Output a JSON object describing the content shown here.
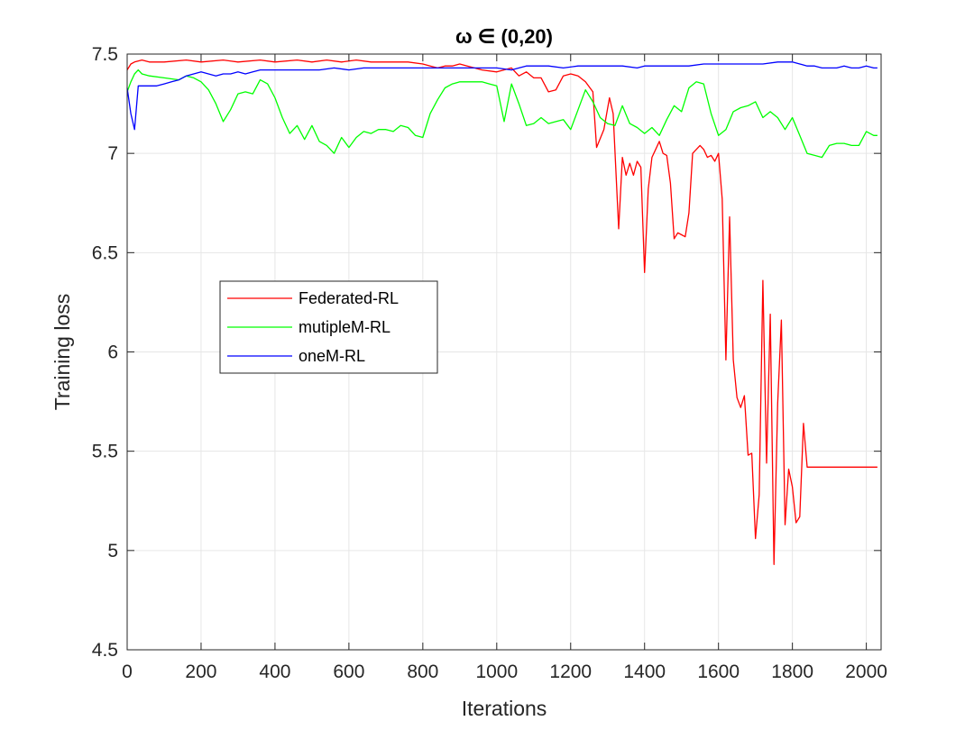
{
  "chart_data": {
    "type": "line",
    "title": "ω ∈ (0,20)",
    "xlabel": "Iterations",
    "ylabel": "Training loss",
    "xlim": [
      0,
      2040
    ],
    "ylim": [
      4.5,
      7.5
    ],
    "xticks": [
      0,
      200,
      400,
      600,
      800,
      1000,
      1200,
      1400,
      1600,
      1800,
      2000
    ],
    "yticks": [
      4.5,
      5,
      5.5,
      6,
      6.5,
      7,
      7.5
    ],
    "xtick_labels": [
      "0",
      "200",
      "400",
      "600",
      "800",
      "1000",
      "1200",
      "1400",
      "1600",
      "1800",
      "2000"
    ],
    "ytick_labels": [
      "4.5",
      "5",
      "5.5",
      "6",
      "6.5",
      "7",
      "7.5"
    ],
    "grid": true,
    "legend_position": "center-left",
    "series": [
      {
        "name": "Federated-RL",
        "color": "#ff0000",
        "x": [
          0,
          10,
          20,
          40,
          60,
          100,
          160,
          200,
          260,
          300,
          360,
          400,
          460,
          500,
          540,
          580,
          620,
          660,
          700,
          760,
          800,
          820,
          840,
          860,
          880,
          900,
          920,
          940,
          960,
          1000,
          1040,
          1060,
          1080,
          1100,
          1120,
          1140,
          1160,
          1180,
          1200,
          1220,
          1240,
          1260,
          1270,
          1290,
          1305,
          1315,
          1330,
          1340,
          1350,
          1360,
          1370,
          1380,
          1390,
          1400,
          1410,
          1420,
          1430,
          1440,
          1450,
          1460,
          1470,
          1480,
          1490,
          1500,
          1510,
          1520,
          1530,
          1540,
          1550,
          1560,
          1570,
          1580,
          1590,
          1600,
          1610,
          1620,
          1630,
          1640,
          1650,
          1660,
          1670,
          1680,
          1690,
          1700,
          1710,
          1720,
          1730,
          1740,
          1750,
          1760,
          1770,
          1780,
          1790,
          1800,
          1810,
          1820,
          1830,
          1840,
          1850,
          1860,
          1870,
          1880,
          1890,
          1900,
          1910,
          1920,
          1930,
          1940,
          1950,
          1960,
          1970,
          1980,
          1990,
          2000,
          2010,
          2020,
          2030
        ],
        "values": [
          7.42,
          7.45,
          7.46,
          7.47,
          7.46,
          7.46,
          7.47,
          7.46,
          7.47,
          7.46,
          7.47,
          7.46,
          7.47,
          7.46,
          7.47,
          7.46,
          7.47,
          7.46,
          7.46,
          7.46,
          7.45,
          7.44,
          7.43,
          7.44,
          7.44,
          7.45,
          7.44,
          7.43,
          7.42,
          7.41,
          7.43,
          7.39,
          7.41,
          7.38,
          7.38,
          7.31,
          7.32,
          7.39,
          7.4,
          7.39,
          7.36,
          7.31,
          7.03,
          7.12,
          7.28,
          7.2,
          6.62,
          6.98,
          6.89,
          6.95,
          6.89,
          6.96,
          6.93,
          6.4,
          6.82,
          6.98,
          7.02,
          7.06,
          7.0,
          6.99,
          6.85,
          6.57,
          6.6,
          6.59,
          6.58,
          6.7,
          7.0,
          7.02,
          7.04,
          7.02,
          6.98,
          6.99,
          6.96,
          7.0,
          6.77,
          5.96,
          6.68,
          5.96,
          5.77,
          5.72,
          5.78,
          5.48,
          5.49,
          5.06,
          5.28,
          6.36,
          5.44,
          6.19,
          4.93,
          5.74,
          6.16,
          5.13,
          5.41,
          5.32,
          5.14,
          5.17,
          5.64,
          5.42,
          5.42,
          5.42,
          5.42,
          5.42,
          5.42,
          5.42,
          5.42,
          5.42,
          5.42,
          5.42,
          5.42,
          5.42,
          5.42,
          5.42,
          5.42,
          5.42,
          5.42,
          5.42,
          5.42
        ]
      },
      {
        "name": "mutipleM-RL",
        "color": "#00ff00",
        "x": [
          0,
          10,
          20,
          30,
          40,
          60,
          100,
          140,
          160,
          180,
          200,
          220,
          240,
          260,
          280,
          300,
          320,
          340,
          360,
          380,
          400,
          420,
          440,
          460,
          480,
          500,
          520,
          540,
          560,
          580,
          600,
          620,
          640,
          660,
          680,
          700,
          720,
          740,
          760,
          780,
          800,
          820,
          840,
          860,
          880,
          900,
          920,
          940,
          960,
          980,
          1000,
          1020,
          1040,
          1060,
          1080,
          1100,
          1120,
          1140,
          1160,
          1180,
          1200,
          1220,
          1240,
          1260,
          1280,
          1300,
          1320,
          1340,
          1360,
          1380,
          1400,
          1420,
          1440,
          1460,
          1480,
          1500,
          1520,
          1540,
          1560,
          1580,
          1600,
          1620,
          1640,
          1660,
          1680,
          1700,
          1720,
          1740,
          1760,
          1780,
          1800,
          1820,
          1840,
          1860,
          1880,
          1900,
          1920,
          1940,
          1960,
          1980,
          2000,
          2020,
          2030
        ],
        "values": [
          7.31,
          7.36,
          7.4,
          7.42,
          7.4,
          7.39,
          7.38,
          7.37,
          7.39,
          7.38,
          7.36,
          7.32,
          7.25,
          7.16,
          7.22,
          7.3,
          7.31,
          7.3,
          7.37,
          7.35,
          7.28,
          7.18,
          7.1,
          7.14,
          7.07,
          7.14,
          7.06,
          7.04,
          7.0,
          7.08,
          7.03,
          7.08,
          7.11,
          7.1,
          7.12,
          7.12,
          7.11,
          7.14,
          7.13,
          7.09,
          7.08,
          7.2,
          7.27,
          7.33,
          7.35,
          7.36,
          7.36,
          7.36,
          7.36,
          7.35,
          7.34,
          7.16,
          7.35,
          7.25,
          7.14,
          7.15,
          7.18,
          7.15,
          7.16,
          7.17,
          7.12,
          7.22,
          7.32,
          7.26,
          7.18,
          7.15,
          7.14,
          7.24,
          7.15,
          7.13,
          7.1,
          7.13,
          7.09,
          7.17,
          7.24,
          7.21,
          7.33,
          7.36,
          7.35,
          7.2,
          7.09,
          7.12,
          7.21,
          7.23,
          7.24,
          7.26,
          7.18,
          7.21,
          7.18,
          7.12,
          7.18,
          7.09,
          7.0,
          6.99,
          6.98,
          7.04,
          7.05,
          7.05,
          7.04,
          7.04,
          7.11,
          7.09,
          7.09
        ]
      },
      {
        "name": "oneM-RL",
        "color": "#0000ff",
        "x": [
          0,
          10,
          20,
          30,
          40,
          60,
          80,
          100,
          120,
          140,
          160,
          180,
          200,
          220,
          240,
          260,
          280,
          300,
          320,
          340,
          360,
          380,
          400,
          440,
          480,
          520,
          560,
          600,
          640,
          680,
          720,
          760,
          800,
          840,
          880,
          920,
          960,
          1000,
          1040,
          1060,
          1080,
          1100,
          1140,
          1180,
          1220,
          1260,
          1300,
          1340,
          1380,
          1400,
          1440,
          1480,
          1520,
          1560,
          1600,
          1640,
          1680,
          1720,
          1760,
          1780,
          1800,
          1820,
          1840,
          1860,
          1880,
          1900,
          1920,
          1940,
          1960,
          1980,
          2000,
          2020,
          2030
        ],
        "values": [
          7.33,
          7.2,
          7.12,
          7.34,
          7.34,
          7.34,
          7.34,
          7.35,
          7.36,
          7.37,
          7.39,
          7.4,
          7.41,
          7.4,
          7.39,
          7.4,
          7.4,
          7.41,
          7.4,
          7.41,
          7.42,
          7.42,
          7.42,
          7.42,
          7.42,
          7.42,
          7.43,
          7.42,
          7.43,
          7.43,
          7.43,
          7.43,
          7.43,
          7.43,
          7.43,
          7.43,
          7.43,
          7.43,
          7.42,
          7.43,
          7.44,
          7.44,
          7.44,
          7.43,
          7.44,
          7.44,
          7.44,
          7.44,
          7.43,
          7.44,
          7.44,
          7.44,
          7.44,
          7.45,
          7.45,
          7.45,
          7.45,
          7.45,
          7.46,
          7.46,
          7.46,
          7.45,
          7.44,
          7.44,
          7.43,
          7.43,
          7.43,
          7.44,
          7.43,
          7.43,
          7.44,
          7.43,
          7.43
        ]
      }
    ]
  }
}
